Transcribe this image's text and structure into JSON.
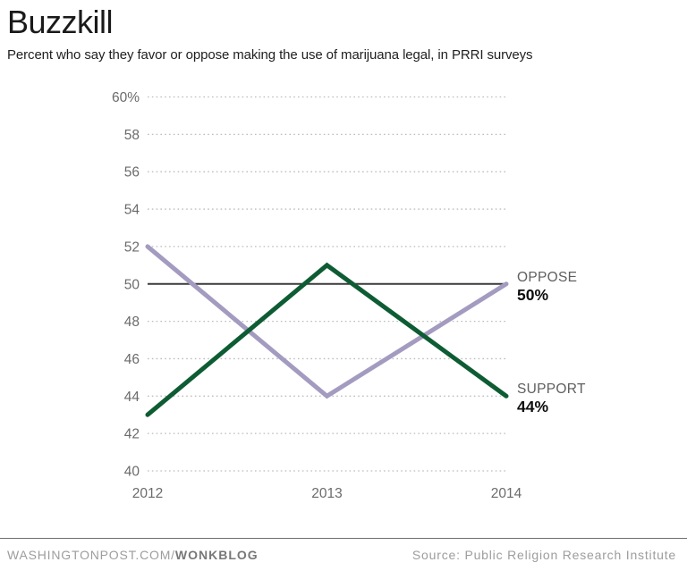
{
  "header": {
    "title": "Buzzkill",
    "subtitle": "Percent who say they favor or oppose making the use of marijuana legal, in PRRI surveys"
  },
  "chart_data": {
    "type": "line",
    "categories": [
      "2012",
      "2013",
      "2014"
    ],
    "series": [
      {
        "name": "OPPOSE",
        "values": [
          52,
          44,
          50
        ],
        "color": "#a49bc0",
        "end_label": {
          "name": "OPPOSE",
          "value": "50%"
        }
      },
      {
        "name": "SUPPORT",
        "values": [
          43,
          51,
          44
        ],
        "color": "#0e5c33",
        "end_label": {
          "name": "SUPPORT",
          "value": "44%"
        }
      }
    ],
    "ylim": [
      40,
      60
    ],
    "y_tick_step": 2,
    "y_max_tick_label": "60%",
    "xlabel": "",
    "ylabel": "",
    "grid": "horizontal-dotted",
    "gridline_color": "#bcbcbc",
    "reference_line": {
      "value": 50,
      "color": "#3a3a3a"
    },
    "legend_position": "line-end-labels"
  },
  "footer": {
    "site": "WASHINGTONPOST.COM/",
    "blog": "WONKBLOG",
    "source": "Source: Public Religion Research Institute"
  }
}
